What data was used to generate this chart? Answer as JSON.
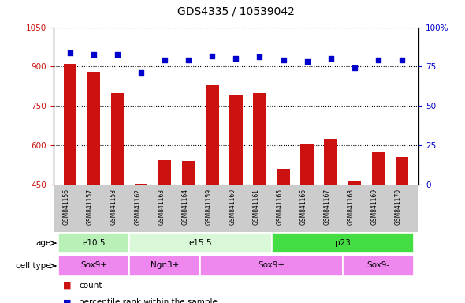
{
  "title": "GDS4335 / 10539042",
  "samples": [
    "GSM841156",
    "GSM841157",
    "GSM841158",
    "GSM841162",
    "GSM841163",
    "GSM841164",
    "GSM841159",
    "GSM841160",
    "GSM841161",
    "GSM841165",
    "GSM841166",
    "GSM841167",
    "GSM841168",
    "GSM841169",
    "GSM841170"
  ],
  "counts": [
    910,
    880,
    800,
    455,
    545,
    540,
    830,
    790,
    800,
    510,
    605,
    625,
    465,
    575,
    555
  ],
  "percentiles": [
    84,
    83,
    83,
    71,
    79,
    79,
    82,
    80,
    81,
    79,
    78,
    80,
    74,
    79,
    79
  ],
  "ylim_left": [
    450,
    1050
  ],
  "ylim_right": [
    0,
    100
  ],
  "yticks_left": [
    450,
    600,
    750,
    900,
    1050
  ],
  "yticks_right": [
    0,
    25,
    50,
    75,
    100
  ],
  "age_groups": [
    {
      "label": "e10.5",
      "start": 0,
      "end": 3,
      "color": "#b8f0b8"
    },
    {
      "label": "e15.5",
      "start": 3,
      "end": 9,
      "color": "#d8f8d8"
    },
    {
      "label": "p23",
      "start": 9,
      "end": 15,
      "color": "#44dd44"
    }
  ],
  "cell_type_groups": [
    {
      "label": "Sox9+",
      "start": 0,
      "end": 3,
      "color": "#ee88ee"
    },
    {
      "label": "Ngn3+",
      "start": 3,
      "end": 6,
      "color": "#ee88ee"
    },
    {
      "label": "Sox9+",
      "start": 6,
      "end": 12,
      "color": "#ee88ee"
    },
    {
      "label": "Sox9-",
      "start": 12,
      "end": 15,
      "color": "#ee88ee"
    }
  ],
  "bar_color": "#cc1111",
  "dot_color": "#0000cc",
  "grid_color": "#000000",
  "background_color": "#ffffff",
  "xtick_bg_color": "#cccccc",
  "count_legend": "count",
  "percentile_legend": "percentile rank within the sample"
}
